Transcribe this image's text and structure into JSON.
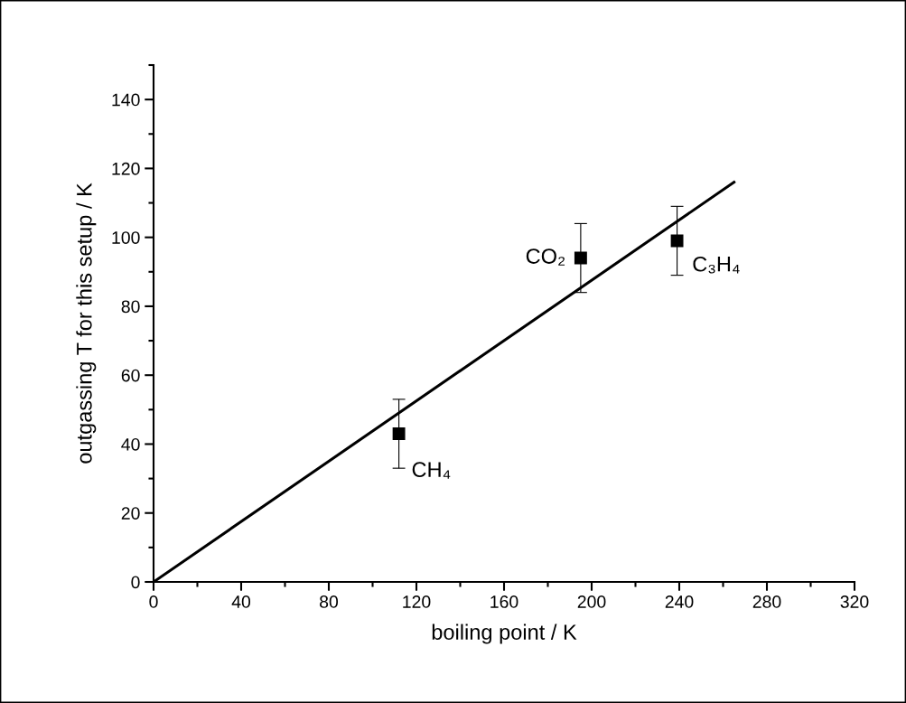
{
  "chart_data": {
    "type": "scatter",
    "xlabel": "boiling point / K",
    "ylabel": "outgassing T for this setup / K",
    "x": [
      112,
      195,
      239
    ],
    "series": [
      {
        "color": "#000000",
        "marker": "square",
        "values": [
          43,
          94,
          99
        ],
        "errors": [
          10,
          10,
          10
        ]
      },
      {
        "type": "line",
        "color": "#000000",
        "x": [
          0,
          265
        ],
        "values": [
          0,
          116
        ],
        "line_style": "solid"
      }
    ],
    "annotations": [
      {
        "text": "CH₄",
        "x": 112,
        "y": 43
      },
      {
        "text": "CO₂",
        "x": 195,
        "y": 94
      },
      {
        "text": "C₃H₄",
        "x": 239,
        "y": 99
      }
    ],
    "xlim": [
      0,
      320
    ],
    "xticks": [
      0,
      40,
      80,
      120,
      160,
      200,
      240,
      280,
      320
    ],
    "ylim": [
      0,
      150
    ],
    "yticks": [
      0,
      20,
      40,
      60,
      80,
      100,
      120,
      140
    ],
    "grid": false,
    "legend": false
  }
}
